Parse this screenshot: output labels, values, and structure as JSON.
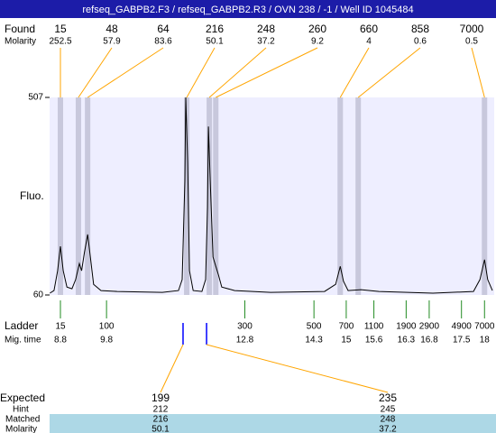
{
  "chart_data": {
    "type": "electropherogram",
    "title": "refseq_GABPB2.F3 / refseq_GABPB2.R3 / OVN 238 / -1 / Well ID 1045484",
    "found_label": "Found",
    "molarity_label": "Molarity",
    "found": [
      15,
      48,
      64,
      216,
      248,
      260,
      660,
      858,
      7000
    ],
    "molarity": [
      252.5,
      57.9,
      83.6,
      50.1,
      37.2,
      9.2,
      4,
      0.6,
      0.5
    ],
    "found_time": [
      8.8,
      9.19,
      9.39,
      11.54,
      12.03,
      12.17,
      14.87,
      15.26,
      18.0
    ],
    "y_label": "Fluo.",
    "ylim": [
      60,
      507
    ],
    "yticks": [
      60,
      507
    ],
    "xlim": [
      8.565,
      18.21
    ],
    "trace_time": [
      8.57,
      8.66,
      8.74,
      8.8,
      8.86,
      8.94,
      9.05,
      9.13,
      9.21,
      9.26,
      9.32,
      9.39,
      9.45,
      9.52,
      9.68,
      10.03,
      11.01,
      11.36,
      11.44,
      11.5,
      11.52,
      11.56,
      11.6,
      11.68,
      11.87,
      11.95,
      11.99,
      12.01,
      12.05,
      12.11,
      12.17,
      12.23,
      12.3,
      12.58,
      13.36,
      14.53,
      14.77,
      14.87,
      14.94,
      15.04,
      15.32,
      15.71,
      16.88,
      17.76,
      17.9,
      18.0,
      18.07,
      18.17
    ],
    "trace_fluo": [
      64,
      70,
      115,
      170,
      115,
      78,
      74,
      95,
      131,
      115,
      156,
      197,
      146,
      84,
      70,
      68,
      66,
      70,
      95,
      319,
      507,
      360,
      115,
      70,
      68,
      95,
      258,
      441,
      319,
      146,
      125,
      105,
      78,
      70,
      66,
      68,
      84,
      125,
      91,
      70,
      72,
      68,
      64,
      68,
      95,
      140,
      95,
      70
    ],
    "ladder_label": "Ladder",
    "mig_time_label": "Mig. time",
    "ladder": [
      15,
      100,
      300,
      500,
      700,
      1100,
      1900,
      2900,
      4900,
      7000
    ],
    "mig_time": [
      8.8,
      9.8,
      12.8,
      14.3,
      15,
      15.6,
      16.3,
      16.8,
      17.5,
      18
    ],
    "expected_label": "Expected",
    "hint_label": "Hint",
    "matched_label": "Matched",
    "expected_molarity_label": "Molarity",
    "expected": [
      199,
      235
    ],
    "expected_time": [
      11.46,
      11.97
    ],
    "hint": [
      212,
      245
    ],
    "matched": [
      216,
      248
    ],
    "expected_molarity": [
      50.1,
      37.2
    ],
    "trace_color": "#000000",
    "band_color": "#c8c8dc",
    "plot_color": "#eeeeff",
    "ladder_color": "#228b22",
    "connector_color": "#ffa500",
    "marker_color": "#0000ff"
  }
}
